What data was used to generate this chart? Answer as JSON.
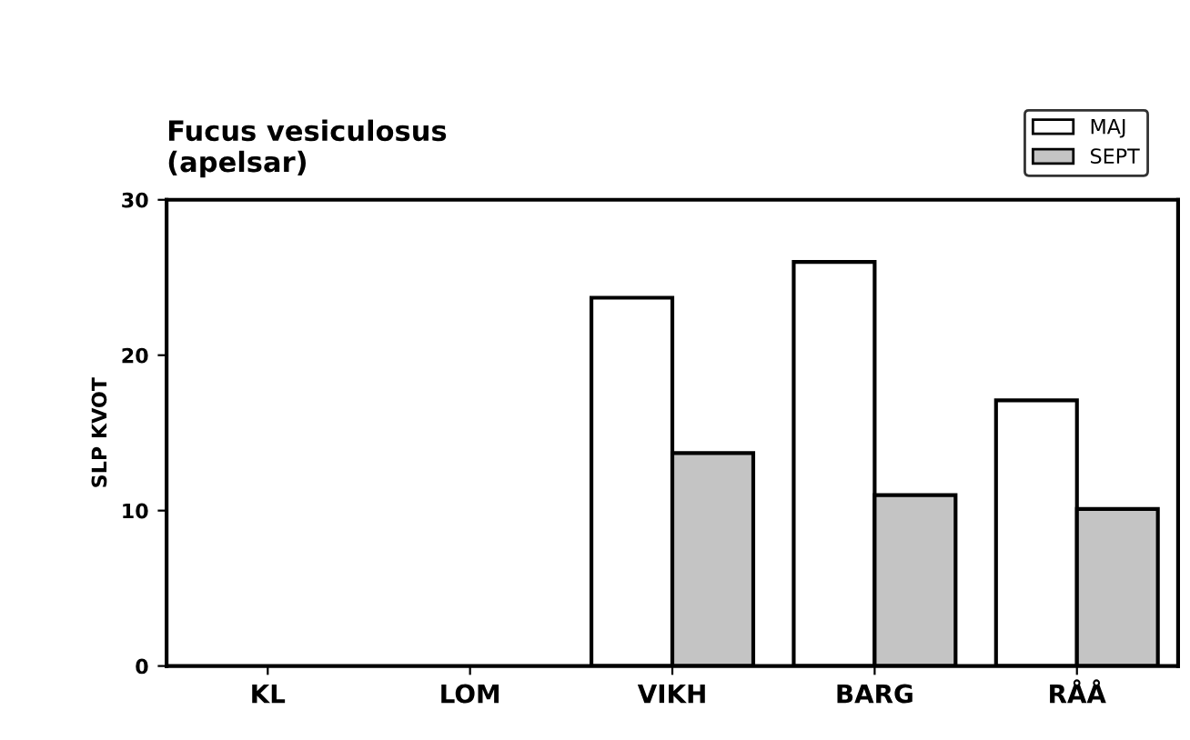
{
  "chart_data": {
    "type": "bar",
    "title": "Fucus vesiculosus\n(apelsar)",
    "ylabel": "SLP KVOT",
    "categories": [
      "KL",
      "LOM",
      "VIKH",
      "BARG",
      "RÅÅ"
    ],
    "series": [
      {
        "name": "MAJ",
        "color": "#ffffff",
        "values": [
          null,
          null,
          23.7,
          26.0,
          17.1
        ]
      },
      {
        "name": "SEPT",
        "color": "#c4c4c4",
        "values": [
          null,
          null,
          13.7,
          11.0,
          10.1
        ]
      }
    ],
    "ylim": [
      0,
      30
    ],
    "yticks": [
      0,
      10,
      20,
      30
    ],
    "grid": false,
    "legend": "top right"
  }
}
